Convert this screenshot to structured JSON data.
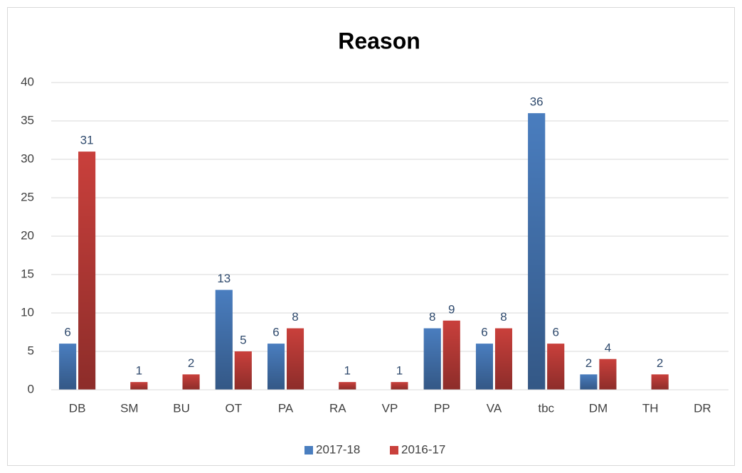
{
  "chart_data": {
    "type": "bar",
    "title": "Reason",
    "categories": [
      "DB",
      "SM",
      "BU",
      "OT",
      "PA",
      "RA",
      "VP",
      "PP",
      "VA",
      "tbc",
      "DM",
      "TH",
      "DR"
    ],
    "series": [
      {
        "name": "2017-18",
        "color": "#4a7ebf",
        "values": [
          6,
          null,
          null,
          13,
          6,
          null,
          null,
          8,
          6,
          36,
          2,
          null,
          null
        ]
      },
      {
        "name": "2016-17",
        "color": "#c9403c",
        "values": [
          31,
          1,
          2,
          5,
          8,
          1,
          1,
          9,
          8,
          6,
          4,
          2,
          null
        ]
      }
    ],
    "ylim": [
      0,
      40
    ],
    "yticks": [
      0,
      5,
      10,
      15,
      20,
      25,
      30,
      35,
      40
    ],
    "grid": true,
    "legend": "bottom"
  }
}
